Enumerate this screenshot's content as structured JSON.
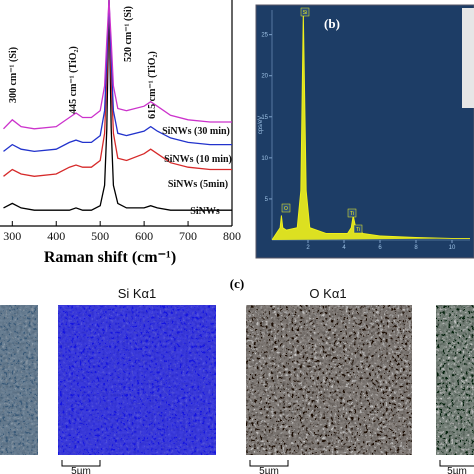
{
  "chart_data": [
    {
      "type": "line",
      "xlabel": "Raman shift (cm⁻¹)",
      "x": [
        280,
        300,
        320,
        350,
        400,
        430,
        445,
        460,
        480,
        500,
        510,
        515,
        520,
        525,
        530,
        540,
        560,
        600,
        615,
        630,
        660,
        700,
        750,
        800
      ],
      "xlim": [
        272,
        800
      ],
      "xticks": [
        300,
        400,
        500,
        600,
        700,
        800
      ],
      "ylim": [
        0,
        100
      ],
      "series": [
        {
          "name": "SiNWs",
          "color": "#000000",
          "values": [
            8,
            10,
            8,
            7,
            7,
            7,
            8,
            7,
            7,
            9,
            18,
            43,
            100,
            43,
            18,
            10,
            8,
            8,
            9,
            8,
            7,
            7,
            7,
            7
          ]
        },
        {
          "name": "SiNWs (5min)",
          "color": "#d62a2a",
          "values": [
            22,
            25,
            23,
            22,
            23,
            26,
            27,
            26,
            26,
            29,
            41,
            66,
            100,
            66,
            41,
            30,
            29,
            32,
            34,
            32,
            28,
            26,
            25,
            25
          ]
        },
        {
          "name": "SiNWs (10 min)",
          "color": "#2233cc",
          "values": [
            33,
            36,
            34,
            33,
            34,
            37,
            38,
            37,
            37,
            40,
            51,
            74,
            100,
            74,
            51,
            41,
            40,
            42,
            44,
            42,
            39,
            37,
            36,
            36
          ]
        },
        {
          "name": "SiNWs (30 min)",
          "color": "#cc33cc",
          "values": [
            43,
            47,
            44,
            43,
            44,
            48,
            50,
            48,
            48,
            51,
            62,
            82,
            100,
            82,
            62,
            52,
            51,
            53,
            55,
            53,
            49,
            47,
            46,
            46
          ]
        }
      ],
      "annotations": [
        "300 cm⁻¹ (Si)",
        "445 cm⁻¹ (TiO₂)",
        "520 cm⁻¹ (Si)",
        "615 cm⁻¹ (TiO₂)"
      ]
    },
    {
      "type": "line",
      "title": "(b)",
      "ylabel": "cps/eV",
      "x": [
        0,
        0.3,
        0.45,
        0.52,
        0.6,
        0.8,
        1.4,
        1.6,
        1.74,
        1.9,
        2.1,
        3,
        4.2,
        4.4,
        4.51,
        4.65,
        4.8,
        4.93,
        5.05,
        6,
        8,
        10,
        11
      ],
      "xlim": [
        0,
        11
      ],
      "xticks": [
        2,
        4,
        6,
        8,
        10
      ],
      "ylim": [
        0,
        28
      ],
      "yticks": [
        5,
        10,
        15,
        20,
        25
      ],
      "series": [
        {
          "color": "#f2f21a",
          "values": [
            0,
            1,
            1.5,
            3,
            1.5,
            1.2,
            1.5,
            6,
            28,
            6,
            1.5,
            0.8,
            0.8,
            1.5,
            3,
            1.5,
            1.2,
            1,
            0.8,
            0.5,
            0.3,
            0.2,
            0.2
          ]
        }
      ],
      "peak_labels": [
        "O",
        "Si",
        "Ti",
        "Ti"
      ]
    }
  ],
  "panel_c": {
    "label": "(c)",
    "titles": [
      "Si Kα1",
      "O Kα1"
    ],
    "scale_bars": [
      "5µm",
      "5µm",
      "5µm"
    ]
  }
}
